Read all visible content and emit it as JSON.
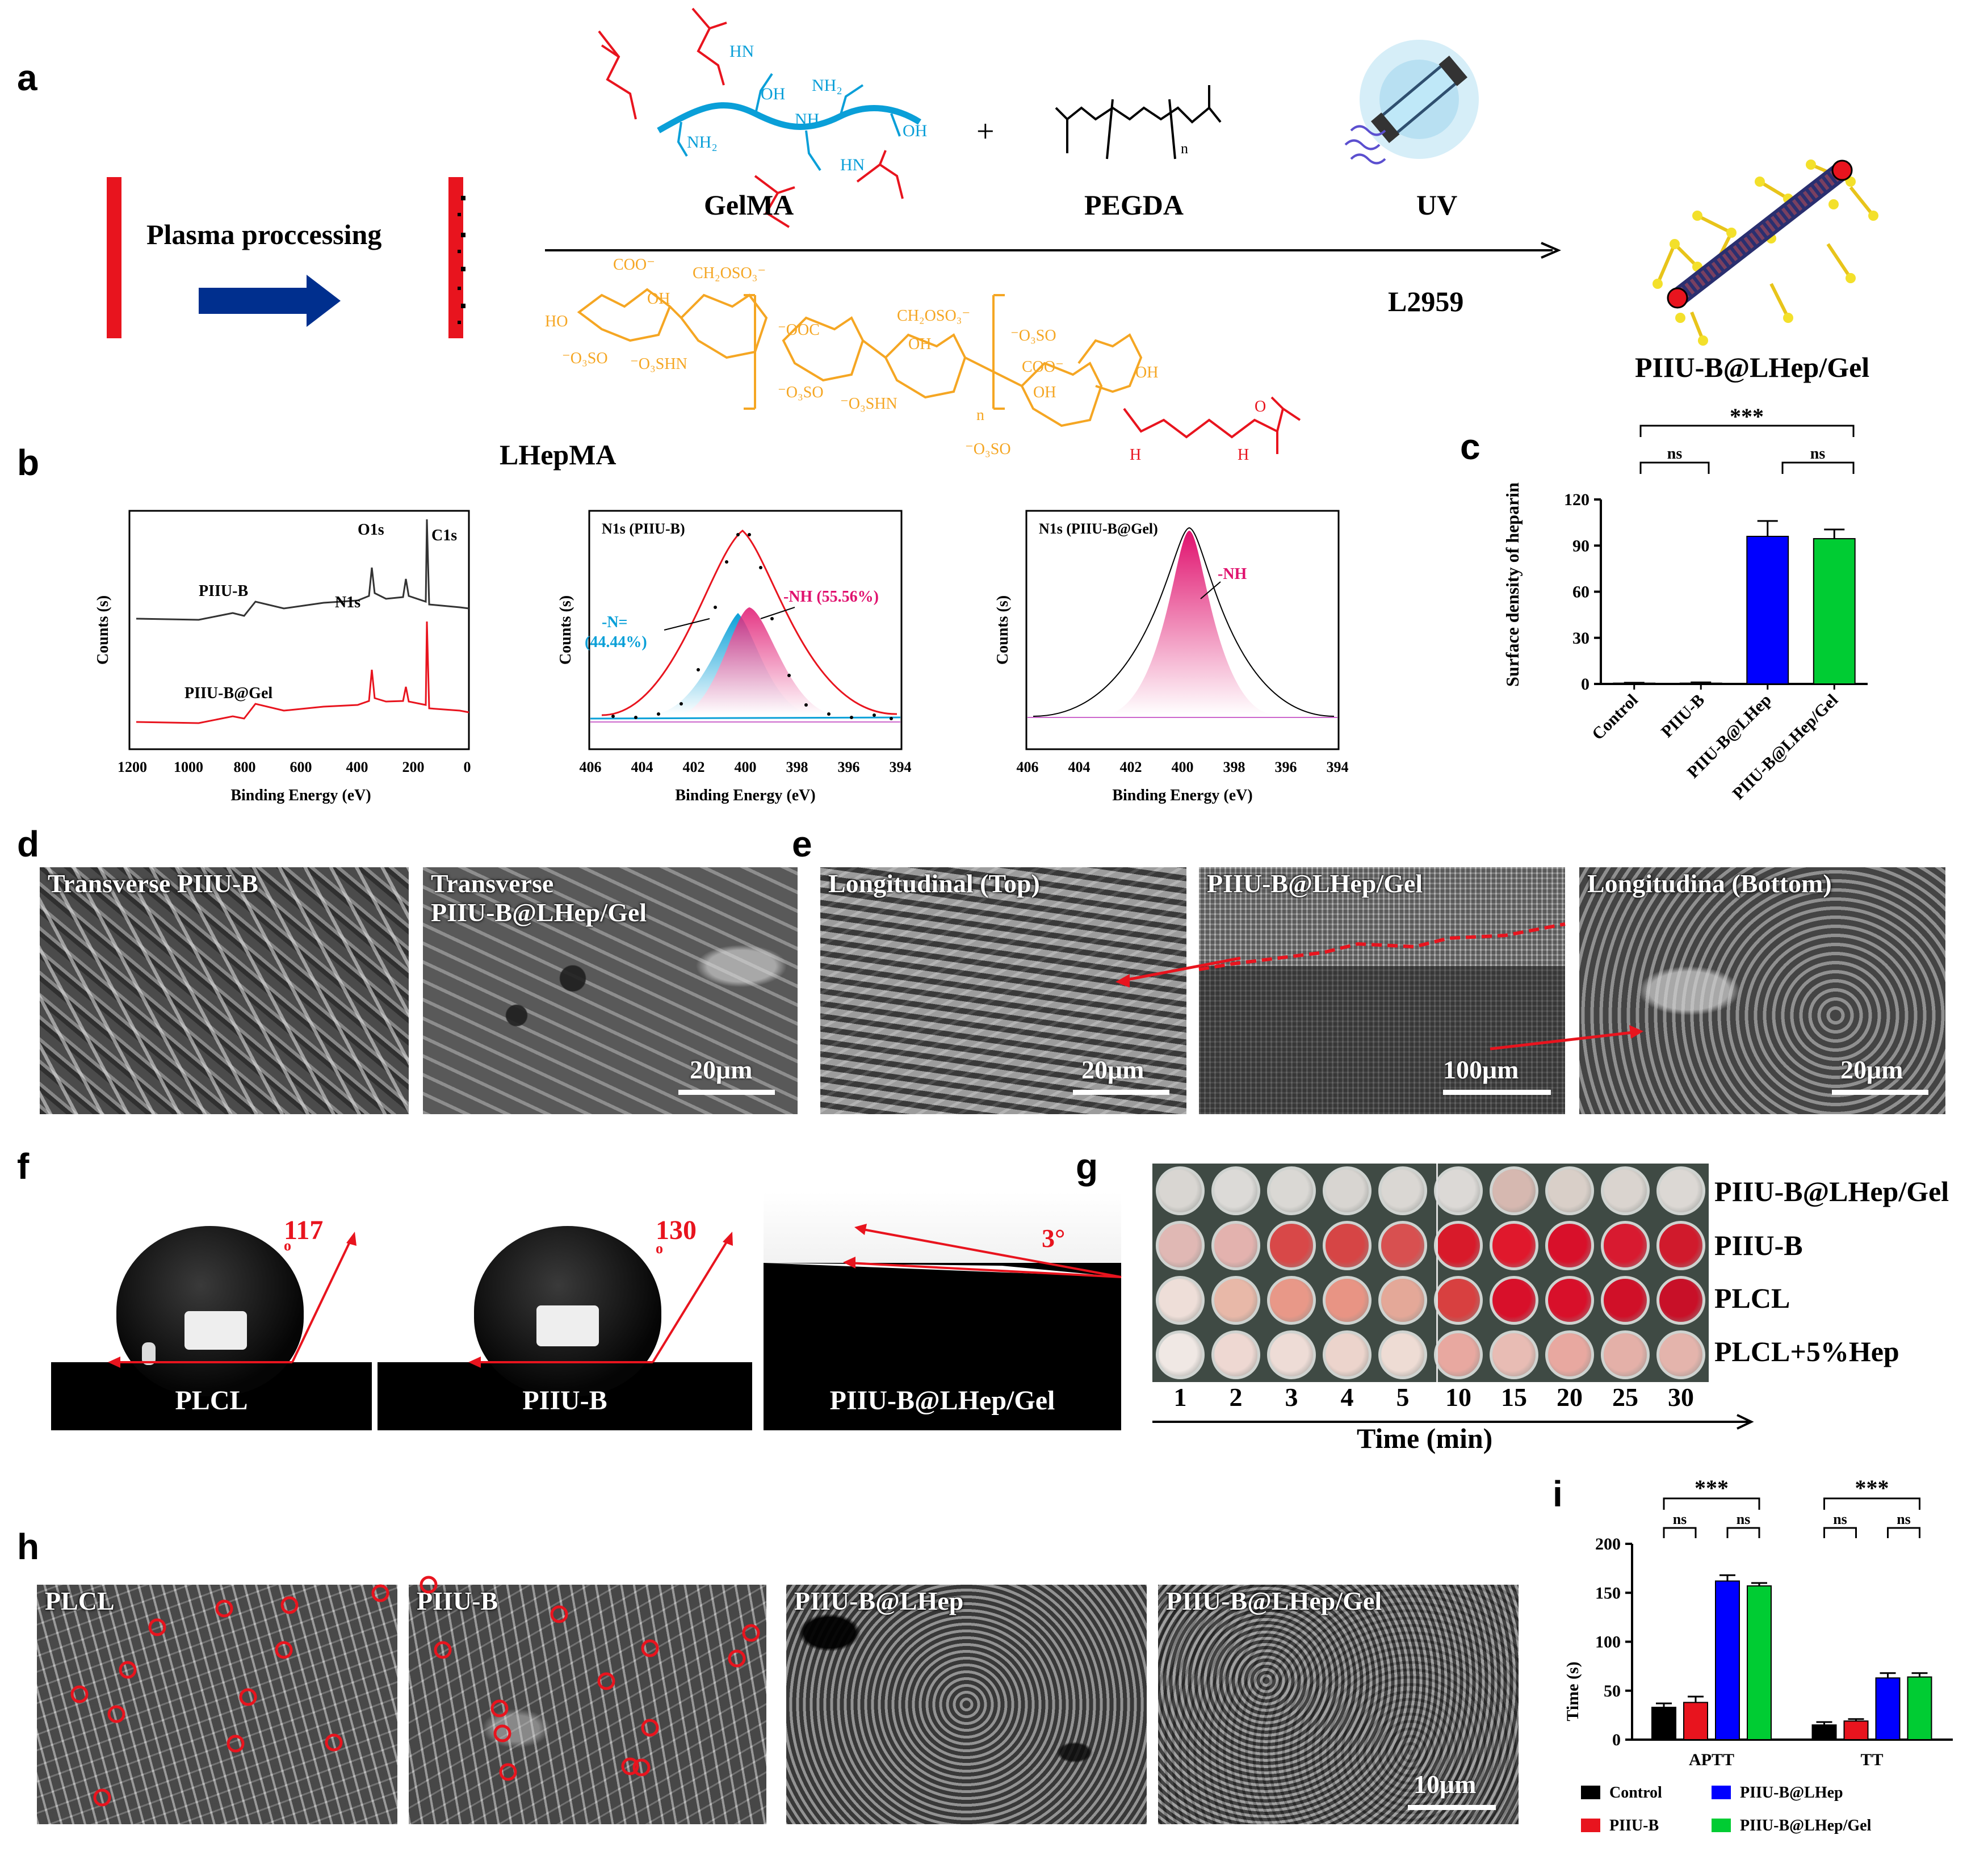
{
  "panels": {
    "a": {
      "letter": "a",
      "plasma_label": "Plasma proccessing",
      "gelma_label": "GelMA",
      "pegda_label": "PEGDA",
      "uv_label": "UV",
      "l2959_label": "L2959",
      "lhepma_label": "LHepMA",
      "plus": "+",
      "pegda_n": "n",
      "product_label": "PIIU-B@LHep/Gel",
      "gelma_groups": [
        "HN",
        "OH",
        "NH",
        "NH₂",
        "NH₂",
        "OH",
        "HN"
      ],
      "lhepma_groups": [
        "COO⁻",
        "CH₂OSO₃⁻",
        "OH",
        "HO",
        "⁻O₃SO",
        "⁻O₃SHN",
        "⁻OOC",
        "CH₂OSO₃⁻",
        "OH",
        "⁻O₃SO",
        "⁻O₃SHN",
        "⁻O₃SO",
        "COO⁻",
        "OH",
        "OH",
        "⁻O₃SO",
        "H",
        "H",
        "O",
        "n"
      ]
    },
    "b": {
      "letter": "b",
      "survey": {
        "ylabel": "Counts (s)",
        "xlabel": "Binding Energy (eV)",
        "xticks": [
          "1200",
          "1000",
          "800",
          "600",
          "400",
          "200",
          "0"
        ],
        "peak_labels": [
          "O1s",
          "C1s",
          "N1s"
        ],
        "series_labels": [
          "PIIU-B",
          "PIIU-B@Gel"
        ]
      },
      "n1s_piiub": {
        "title": "N1s (PIIU-B)",
        "ylabel": "Counts (s)",
        "xlabel": "Binding Energy (eV)",
        "xticks": [
          "406",
          "404",
          "402",
          "400",
          "398",
          "396",
          "394"
        ],
        "comp1_label": "-N=",
        "comp1_pct": "(44.44%)",
        "comp2_label": "-NH (55.56%)"
      },
      "n1s_gel": {
        "title": "N1s (PIIU-B@Gel)",
        "ylabel": "Counts (s)",
        "xlabel": "Binding Energy (eV)",
        "xticks": [
          "406",
          "404",
          "402",
          "400",
          "398",
          "396",
          "394"
        ],
        "comp_label": "-NH"
      }
    },
    "c": {
      "letter": "c",
      "sig_top": "***",
      "sig_left": "ns",
      "sig_right": "ns"
    },
    "d": {
      "letter": "d",
      "img1_label": "Transverse  PIIU-B",
      "img2_label_line1": "Transverse",
      "img2_label_line2": "PIIU-B@LHep/Gel",
      "scale": "20μm"
    },
    "e": {
      "letter": "e",
      "img1_label": "Longitudinal (Top)",
      "img2_label": "PIIU-B@LHep/Gel",
      "img3_label": "Longitudina (Bottom)",
      "scale1": "20μm",
      "scale2": "100μm",
      "scale3": "20μm"
    },
    "f": {
      "letter": "f",
      "img1_label": "PLCL",
      "img2_label": "PIIU-B",
      "img3_label": "PIIU-B@LHep/Gel",
      "angle1": "117",
      "angle2": "130",
      "angle3": "3°",
      "degree": "o"
    },
    "g": {
      "letter": "g",
      "rows": [
        "PIIU-B@LHep/Gel",
        "PIIU-B",
        "PLCL",
        "PLCL+5%Hep"
      ],
      "times": [
        "1",
        "2",
        "3",
        "4",
        "5",
        "10",
        "15",
        "20",
        "25",
        "30"
      ],
      "axis_label": "Time (min)",
      "well_colors": [
        [
          "#d9d6d2",
          "#dcdad7",
          "#dad8d4",
          "#d8d5d1",
          "#dad7d3",
          "#dcd9d6",
          "#d6b8b0",
          "#d9cfc8",
          "#dad4cf",
          "#dcd8d4"
        ],
        [
          "#e0b8b4",
          "#e3b2ae",
          "#d84848",
          "#d64545",
          "#d85050",
          "#d81a2a",
          "#e0182c",
          "#d8102a",
          "#d81a30",
          "#d01a2c"
        ],
        [
          "#eeded8",
          "#e8b8a8",
          "#e89888",
          "#e89484",
          "#e4a898",
          "#d84040",
          "#d8102a",
          "#d8102a",
          "#d01028",
          "#c81028"
        ],
        [
          "#f0e8e4",
          "#eed8d2",
          "#eedcd6",
          "#ecd4cc",
          "#eedcd4",
          "#e8a8a0",
          "#e8bcb4",
          "#e8a8a0",
          "#e4b0a8",
          "#e4b4ac"
        ]
      ]
    },
    "h": {
      "letter": "h",
      "img1_label": "PLCL",
      "img2_label": "PIIU-B",
      "img3_label": "PIIU-B@LHep",
      "img4_label": "PIIU-B@LHep/Gel",
      "scale": "10μm"
    },
    "i": {
      "letter": "i",
      "sig_aptt": "***",
      "sig_tt": "***",
      "ns": "ns",
      "legend": [
        "Control",
        "PIIU-B",
        "PIIU-B@LHep",
        "PIIU-B@LHep/Gel"
      ]
    }
  },
  "colors": {
    "red": "#e8141e",
    "blue": "#0000ff",
    "green": "#00cc33",
    "black": "#000000",
    "cyan": "#0aa0d8",
    "magenta": "#e0126e",
    "orange": "#f5a623",
    "navy": "#002f8e"
  },
  "chart_data": [
    {
      "type": "bar",
      "panel": "c",
      "ylabel": "Surface density of heparin",
      "categories": [
        "Control",
        "PIIU-B",
        "PIIU-B@LHep",
        "PIIU-B@LHep/Gel"
      ],
      "values": [
        0.5,
        0.5,
        96,
        94.5
      ],
      "errors": [
        0.3,
        0.5,
        10,
        6
      ],
      "bar_colors": [
        "#000000",
        "#e8141e",
        "#0000ff",
        "#00cc33"
      ],
      "ylim": [
        0,
        120
      ],
      "yticks": [
        "0",
        "30",
        "60",
        "90",
        "120"
      ]
    },
    {
      "type": "bar",
      "panel": "i",
      "ylabel": "Time (s)",
      "categories": [
        "APTT",
        "TT"
      ],
      "series": [
        {
          "name": "Control",
          "values": [
            33,
            15
          ],
          "errors": [
            4,
            3
          ]
        },
        {
          "name": "PIIU-B",
          "values": [
            38,
            19
          ],
          "errors": [
            6,
            2
          ]
        },
        {
          "name": "PIIU-B@LHep",
          "values": [
            162,
            63
          ],
          "errors": [
            6,
            5
          ]
        },
        {
          "name": "PIIU-B@LHep/Gel",
          "values": [
            157,
            64
          ],
          "errors": [
            3,
            4
          ]
        }
      ],
      "ylim": [
        0,
        200
      ],
      "yticks": [
        "0",
        "50",
        "100",
        "150",
        "200"
      ]
    }
  ]
}
